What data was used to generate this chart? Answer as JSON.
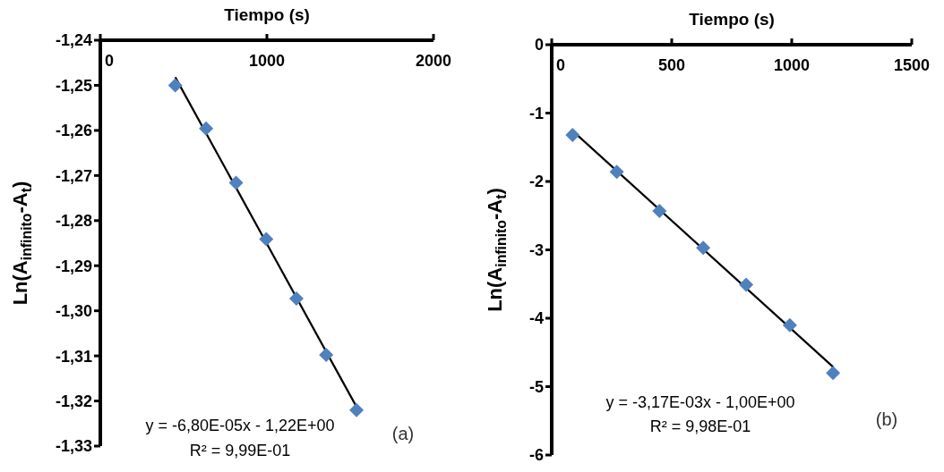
{
  "chart_data": [
    {
      "type": "scatter",
      "xlabel": "Tiempo (s)",
      "ylabel": "Ln(A$_{infinito}$-A$_{t}$)",
      "xlim": [
        0,
        2000
      ],
      "xticks": [
        0,
        1000,
        2000
      ],
      "ylim": [
        -1.33,
        -1.24
      ],
      "yticks": [
        {
          "value": -1.24,
          "label": "-1,24"
        },
        {
          "value": -1.25,
          "label": "-1,25"
        },
        {
          "value": -1.26,
          "label": "-1,26"
        },
        {
          "value": -1.27,
          "label": "-1,27"
        },
        {
          "value": -1.28,
          "label": "-1,28"
        },
        {
          "value": -1.29,
          "label": "-1,29"
        },
        {
          "value": -1.3,
          "label": "-1,30"
        },
        {
          "value": -1.31,
          "label": "-1,31"
        },
        {
          "value": -1.32,
          "label": "-1,32"
        },
        {
          "value": -1.33,
          "label": "-1,33"
        }
      ],
      "series": [
        {
          "type": "scatter",
          "marker": "diamond",
          "color": "#4f81bd",
          "x": [
            450,
            635,
            815,
            996,
            1177,
            1356,
            1538
          ],
          "values": [
            -1.25,
            -1.2596,
            -1.2716,
            -1.2841,
            -1.2973,
            -1.3098,
            -1.322
          ]
        },
        {
          "type": "line",
          "marker": "none",
          "color": "#000000",
          "x": [
            450,
            1538
          ],
          "values": [
            -1.2482,
            -1.3213
          ]
        }
      ],
      "annotations": [
        "y = -6,80E-05x - 1,22E+00",
        "R² = 9,99E-01",
        "(a)"
      ]
    },
    {
      "type": "scatter",
      "xlabel": "Tiempo (s)",
      "ylabel": "Ln(A$_{infinito}$-A$_{t}$)",
      "xlim": [
        0,
        1500
      ],
      "xticks": [
        0,
        500,
        1000,
        1500
      ],
      "ylim": [
        -6,
        0
      ],
      "yticks": [
        0,
        -1,
        -2,
        -3,
        -4,
        -5,
        -6
      ],
      "series": [
        {
          "type": "scatter",
          "marker": "diamond",
          "color": "#4f81bd",
          "x": [
            87,
            271,
            449,
            631,
            810,
            992,
            1172
          ],
          "values": [
            -1.32,
            -1.86,
            -2.43,
            -2.97,
            -3.51,
            -4.1,
            -4.8
          ]
        },
        {
          "type": "line",
          "marker": "none",
          "color": "#000000",
          "x": [
            87,
            1172
          ],
          "values": [
            -1.26,
            -4.71
          ]
        }
      ],
      "annotations": [
        "y = -3,17E-03x - 1,00E+00",
        "R² = 9,98E-01",
        "(b)"
      ]
    }
  ]
}
